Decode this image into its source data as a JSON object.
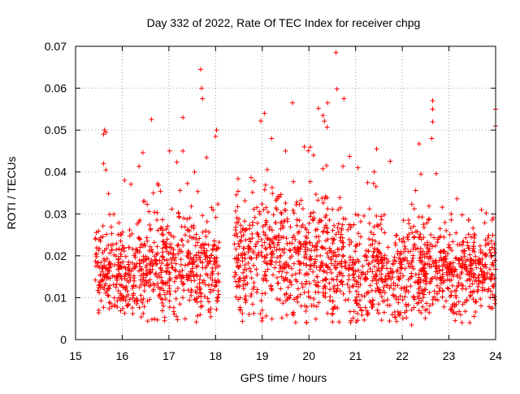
{
  "chart_data": {
    "type": "scatter",
    "title": "Day 332 of 2022, Rate Of TEC Index for receiver chpg",
    "xlabel": "GPS time / hours",
    "ylabel": "ROTI / TECUs",
    "xlim": [
      15,
      24
    ],
    "ylim": [
      0,
      0.07
    ],
    "x_ticks": [
      15,
      16,
      17,
      18,
      19,
      20,
      21,
      22,
      23,
      24
    ],
    "y_ticks": [
      0,
      0.01,
      0.02,
      0.03,
      0.04,
      0.05,
      0.06,
      0.07
    ],
    "x_tick_labels": [
      "15",
      "16",
      "17",
      "18",
      "19",
      "20",
      "21",
      "22",
      "23",
      "24"
    ],
    "y_tick_labels": [
      "0",
      "0.01",
      "0.02",
      "0.03",
      "0.04",
      "0.05",
      "0.06",
      "0.07"
    ],
    "grid": true,
    "marker": "+",
    "color": "#ff0000",
    "coverage_segments": [
      [
        15.42,
        18.08
      ],
      [
        18.4,
        24.0
      ]
    ],
    "bands": [
      {
        "x": [
          15.42,
          16.5
        ],
        "center": 0.016,
        "spread": 0.005
      },
      {
        "x": [
          16.5,
          17.5
        ],
        "center": 0.017,
        "spread": 0.006
      },
      {
        "x": [
          17.5,
          18.08
        ],
        "center": 0.016,
        "spread": 0.006
      },
      {
        "x": [
          18.4,
          20.8
        ],
        "center": 0.019,
        "spread": 0.007
      },
      {
        "x": [
          20.8,
          22.5
        ],
        "center": 0.016,
        "spread": 0.006
      },
      {
        "x": [
          22.5,
          24.0
        ],
        "center": 0.016,
        "spread": 0.005
      }
    ],
    "highlights": [
      {
        "x": 15.62,
        "y": 0.05
      },
      {
        "x": 15.6,
        "y": 0.049
      },
      {
        "x": 15.65,
        "y": 0.0495
      },
      {
        "x": 15.6,
        "y": 0.042
      },
      {
        "x": 15.65,
        "y": 0.0405
      },
      {
        "x": 17.3,
        "y": 0.053
      },
      {
        "x": 17.68,
        "y": 0.0645
      },
      {
        "x": 17.7,
        "y": 0.06
      },
      {
        "x": 17.72,
        "y": 0.0575
      },
      {
        "x": 18.02,
        "y": 0.05
      },
      {
        "x": 18.0,
        "y": 0.0485
      },
      {
        "x": 19.05,
        "y": 0.054
      },
      {
        "x": 19.2,
        "y": 0.048
      },
      {
        "x": 19.65,
        "y": 0.0565
      },
      {
        "x": 20.3,
        "y": 0.0535
      },
      {
        "x": 20.4,
        "y": 0.0565
      },
      {
        "x": 20.58,
        "y": 0.0685
      },
      {
        "x": 20.6,
        "y": 0.0598
      },
      {
        "x": 20.75,
        "y": 0.0575
      },
      {
        "x": 21.45,
        "y": 0.0455
      },
      {
        "x": 22.65,
        "y": 0.057
      },
      {
        "x": 22.65,
        "y": 0.055
      },
      {
        "x": 22.65,
        "y": 0.052
      },
      {
        "x": 22.63,
        "y": 0.048
      },
      {
        "x": 24.0,
        "y": 0.055
      },
      {
        "x": 24.0,
        "y": 0.051
      },
      {
        "x": 16.05,
        "y": 0.038
      },
      {
        "x": 17.3,
        "y": 0.045
      },
      {
        "x": 17.55,
        "y": 0.04
      },
      {
        "x": 19.5,
        "y": 0.045
      },
      {
        "x": 19.9,
        "y": 0.046
      },
      {
        "x": 20.1,
        "y": 0.044
      },
      {
        "x": 21.05,
        "y": 0.041
      },
      {
        "x": 22.4,
        "y": 0.0395
      },
      {
        "x": 15.5,
        "y": 0.007
      },
      {
        "x": 19.0,
        "y": 0.007
      },
      {
        "x": 20.5,
        "y": 0.006
      },
      {
        "x": 22.2,
        "y": 0.0035
      },
      {
        "x": 23.9,
        "y": 0.0075
      }
    ]
  }
}
